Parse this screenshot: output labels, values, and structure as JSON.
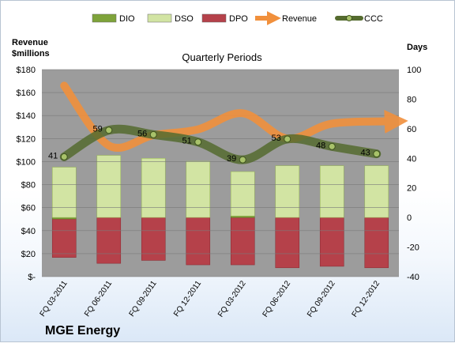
{
  "chart_data": {
    "type": "bar",
    "title": "Quarterly Periods",
    "company": "MGE Energy",
    "left_axis_label_line1": "Revenue",
    "left_axis_label_line2": "$millions",
    "right_axis_label": "Days",
    "categories": [
      "FQ 03-2011",
      "FQ 06-2011",
      "FQ 09-2011",
      "FQ 12-2011",
      "FQ 03-2012",
      "FQ 06-2012",
      "FQ 09-2012",
      "FQ 12-2012"
    ],
    "left_ticks": [
      "$-",
      "$20",
      "$40",
      "$60",
      "$80",
      "$100",
      "$120",
      "$140",
      "$160",
      "$180"
    ],
    "right_ticks": [
      "-40",
      "-20",
      "0",
      "20",
      "40",
      "60",
      "80",
      "100"
    ],
    "left_ylim": [
      0,
      180
    ],
    "right_ylim": [
      -40,
      100
    ],
    "legend_position": "top",
    "series": [
      {
        "name": "DIO",
        "axis": "right",
        "kind": "stacked-bar",
        "color": "#7ea33a",
        "values": [
          -1,
          0,
          0,
          0,
          1,
          0,
          0,
          0
        ]
      },
      {
        "name": "DSO",
        "axis": "right",
        "kind": "stacked-bar",
        "color": "#d2e4a3",
        "values": [
          34,
          42,
          40,
          38,
          30,
          35,
          35,
          35
        ]
      },
      {
        "name": "DPO",
        "axis": "right",
        "kind": "stacked-bar",
        "color": "#b5414a",
        "values": [
          27,
          31,
          29,
          32,
          32,
          34,
          33,
          34
        ]
      },
      {
        "name": "Revenue",
        "axis": "left",
        "kind": "line",
        "color": "#f1903c",
        "values": [
          166,
          114,
          123,
          128,
          142,
          120,
          133,
          135
        ]
      },
      {
        "name": "CCC",
        "axis": "right",
        "kind": "line",
        "color": "#556b2f",
        "values": [
          41,
          59,
          56,
          51,
          39,
          53,
          48,
          43
        ]
      }
    ],
    "ccc_labels": [
      "41",
      "59",
      "56",
      "51",
      "39",
      "53",
      "48",
      "43"
    ]
  }
}
